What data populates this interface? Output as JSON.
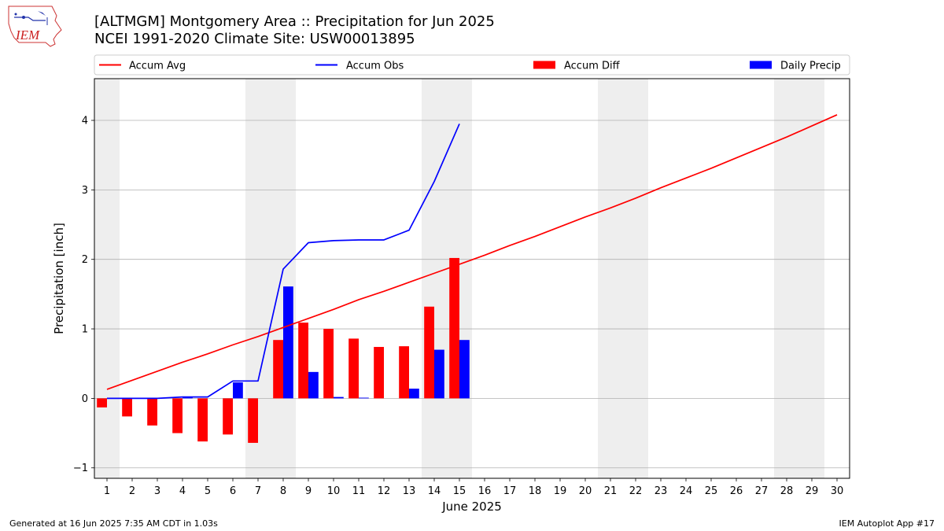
{
  "header": {
    "title_line1": "[ALTMGM] Montgomery Area :: Precipitation for Jun 2025",
    "title_line2": "NCEI 1991-2020 Climate Site: USW00013895",
    "logo_text": "IEM"
  },
  "footer": {
    "generated": "Generated at 16 Jun 2025 7:35 AM CDT in 1.03s",
    "app": "IEM Autoplot App #17"
  },
  "colors": {
    "avg": "#ff0000",
    "obs": "#0000ff",
    "diff": "#ff0000",
    "daily": "#0000ff",
    "weekend_shade": "#eeeeee",
    "grid": "#b0b0b0"
  },
  "chart_data": {
    "type": "bar",
    "xlabel": "June 2025",
    "ylabel": "Precipitation [inch]",
    "xlim": [
      0.5,
      30.5
    ],
    "ylim": [
      -1.15,
      4.6
    ],
    "yticks": [
      -1,
      0,
      1,
      2,
      3,
      4
    ],
    "days": [
      1,
      2,
      3,
      4,
      5,
      6,
      7,
      8,
      9,
      10,
      11,
      12,
      13,
      14,
      15,
      16,
      17,
      18,
      19,
      20,
      21,
      22,
      23,
      24,
      25,
      26,
      27,
      28,
      29,
      30
    ],
    "grid": "horizontal",
    "legend_placement": "top",
    "weekend_days": [
      1,
      7,
      8,
      14,
      15,
      21,
      22,
      28,
      29
    ],
    "legend": [
      "Accum Avg",
      "Accum Obs",
      "Accum Diff",
      "Daily Precip"
    ],
    "series": [
      {
        "name": "Accum Avg",
        "type": "line",
        "color": "#ff0000",
        "values": [
          0.13,
          0.26,
          0.39,
          0.52,
          0.64,
          0.77,
          0.89,
          1.02,
          1.15,
          1.28,
          1.42,
          1.54,
          1.67,
          1.8,
          1.93,
          2.06,
          2.2,
          2.33,
          2.47,
          2.61,
          2.74,
          2.88,
          3.03,
          3.17,
          3.31,
          3.46,
          3.61,
          3.76,
          3.92,
          4.08
        ]
      },
      {
        "name": "Accum Obs",
        "type": "line",
        "color": "#0000ff",
        "values": [
          0.0,
          0.0,
          0.0,
          0.02,
          0.02,
          0.25,
          0.25,
          1.86,
          2.24,
          2.27,
          2.28,
          2.28,
          2.42,
          3.12,
          3.95
        ]
      },
      {
        "name": "Accum Diff",
        "type": "bar",
        "color": "#ff0000",
        "values": [
          -0.13,
          -0.26,
          -0.39,
          -0.5,
          -0.62,
          -0.52,
          -0.64,
          0.84,
          1.09,
          1.0,
          0.86,
          0.74,
          0.75,
          1.32,
          2.02
        ]
      },
      {
        "name": "Daily Precip",
        "type": "bar",
        "color": "#0000ff",
        "values": [
          0.0,
          0.0,
          0.0,
          0.02,
          0.0,
          0.23,
          0.0,
          1.61,
          0.38,
          0.02,
          0.01,
          0.0,
          0.14,
          0.7,
          0.84
        ]
      }
    ]
  }
}
